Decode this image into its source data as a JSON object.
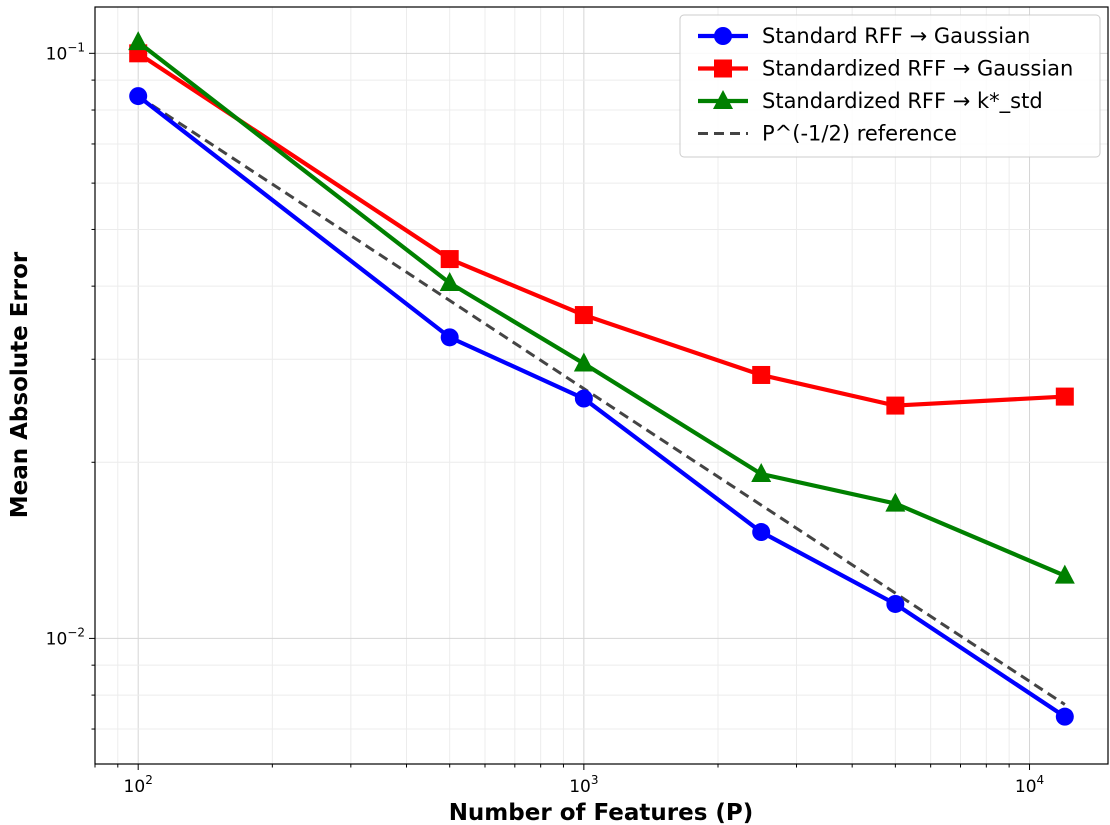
{
  "chart_data": {
    "type": "line",
    "title": "",
    "xlabel": "Number of Features (P)",
    "ylabel": "Mean Absolute Error",
    "xscale": "log",
    "yscale": "log",
    "xlim": [
      80,
      15000
    ],
    "ylim": [
      0.0061,
      0.12
    ],
    "grid": true,
    "legend_position": "top-right",
    "x_ticks": [
      {
        "value": 100,
        "base": "10",
        "exp": "2"
      },
      {
        "value": 1000,
        "base": "10",
        "exp": "3"
      },
      {
        "value": 10000,
        "base": "10",
        "exp": "4"
      }
    ],
    "y_ticks": [
      {
        "value": 0.1,
        "base": "10",
        "exp": "−1"
      },
      {
        "value": 0.01,
        "base": "10",
        "exp": "−2"
      }
    ],
    "x": [
      100,
      500,
      1000,
      2500,
      5000,
      12000
    ],
    "series": [
      {
        "name": "Standard RFF → Gaussian",
        "color": "#0000ff",
        "marker": "circle",
        "dash": false,
        "values": [
          0.0845,
          0.0327,
          0.0257,
          0.0152,
          0.01145,
          0.00735
        ]
      },
      {
        "name": "Standardized RFF → Gaussian",
        "color": "#ff0000",
        "marker": "square",
        "dash": false,
        "values": [
          0.1,
          0.0445,
          0.0357,
          0.0282,
          0.025,
          0.0259
        ]
      },
      {
        "name": "Standardized RFF → k*_std",
        "color": "#008000",
        "marker": "triangle",
        "dash": false,
        "values": [
          0.1045,
          0.0405,
          0.0295,
          0.0191,
          0.017,
          0.0128
        ]
      },
      {
        "name": "P^(-1/2) reference",
        "color": "#444444",
        "marker": "none",
        "dash": true,
        "values": [
          0.0845,
          0.0378,
          0.02672,
          0.0169,
          0.01195,
          0.00771
        ]
      }
    ]
  }
}
